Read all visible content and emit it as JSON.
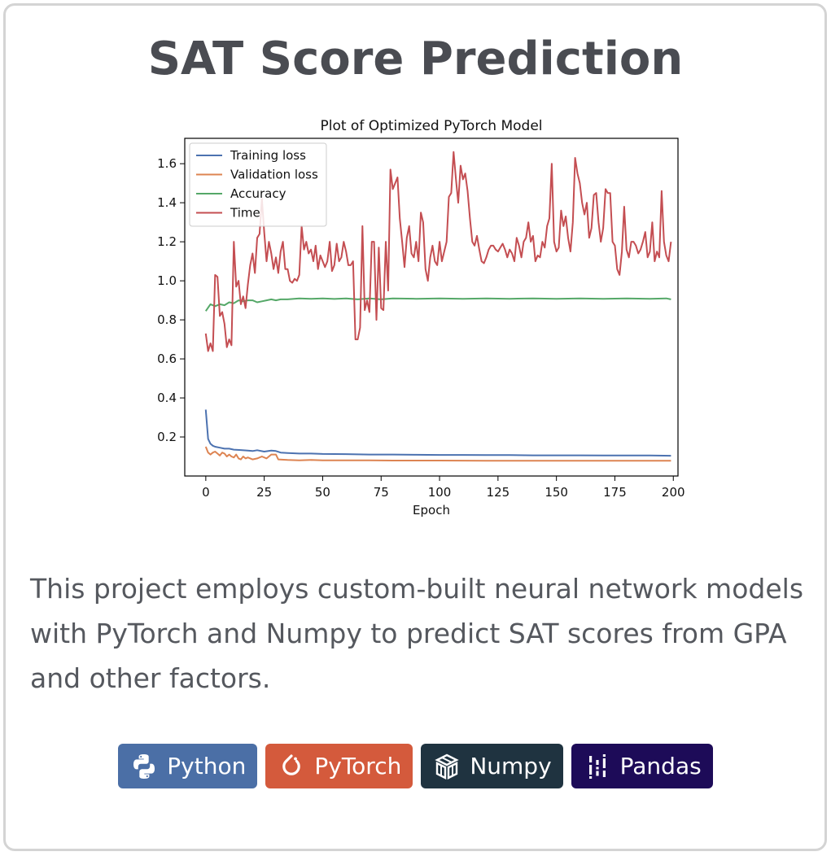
{
  "card": {
    "title": "SAT Score Prediction",
    "description": "This project employs custom-built neural network models with PyTorch and Numpy to predict SAT scores from GPA and other factors."
  },
  "badges": [
    {
      "label": "Python",
      "icon": "python-icon",
      "color": "#4b6fa6"
    },
    {
      "label": "PyTorch",
      "icon": "pytorch-icon",
      "color": "#d45a3c"
    },
    {
      "label": "Numpy",
      "icon": "numpy-icon",
      "color": "#1f3340"
    },
    {
      "label": "Pandas",
      "icon": "pandas-icon",
      "color": "#1d0b58"
    }
  ],
  "chart_data": {
    "type": "line",
    "title": "Plot of Optimized PyTorch Model",
    "xlabel": "Epoch",
    "ylabel": "",
    "xlim": [
      -9,
      202
    ],
    "ylim": [
      0.0,
      1.73
    ],
    "xticks": [
      0,
      25,
      50,
      75,
      100,
      125,
      150,
      175,
      200
    ],
    "yticks": [
      0.2,
      0.4,
      0.6,
      0.8,
      1.0,
      1.2,
      1.4,
      1.6
    ],
    "grid": false,
    "legend_position": "top-left",
    "series": [
      {
        "name": "Training loss",
        "color": "#4c72b0",
        "points": [
          [
            0,
            0.34
          ],
          [
            1,
            0.19
          ],
          [
            2,
            0.165
          ],
          [
            3,
            0.155
          ],
          [
            4,
            0.15
          ],
          [
            6,
            0.145
          ],
          [
            8,
            0.14
          ],
          [
            10,
            0.14
          ],
          [
            12,
            0.135
          ],
          [
            15,
            0.133
          ],
          [
            18,
            0.13
          ],
          [
            20,
            0.128
          ],
          [
            22,
            0.132
          ],
          [
            25,
            0.125
          ],
          [
            28,
            0.13
          ],
          [
            30,
            0.128
          ],
          [
            32,
            0.12
          ],
          [
            35,
            0.118
          ],
          [
            40,
            0.115
          ],
          [
            45,
            0.115
          ],
          [
            50,
            0.113
          ],
          [
            60,
            0.112
          ],
          [
            70,
            0.11
          ],
          [
            80,
            0.11
          ],
          [
            90,
            0.109
          ],
          [
            100,
            0.108
          ],
          [
            110,
            0.108
          ],
          [
            120,
            0.107
          ],
          [
            130,
            0.107
          ],
          [
            140,
            0.106
          ],
          [
            150,
            0.106
          ],
          [
            160,
            0.106
          ],
          [
            170,
            0.105
          ],
          [
            180,
            0.105
          ],
          [
            190,
            0.105
          ],
          [
            199,
            0.104
          ]
        ]
      },
      {
        "name": "Validation loss",
        "color": "#dd8452",
        "points": [
          [
            0,
            0.15
          ],
          [
            1,
            0.12
          ],
          [
            2,
            0.11
          ],
          [
            3,
            0.12
          ],
          [
            4,
            0.125
          ],
          [
            5,
            0.115
          ],
          [
            6,
            0.105
          ],
          [
            7,
            0.12
          ],
          [
            8,
            0.115
          ],
          [
            9,
            0.1
          ],
          [
            10,
            0.11
          ],
          [
            11,
            0.1
          ],
          [
            12,
            0.095
          ],
          [
            13,
            0.11
          ],
          [
            14,
            0.09
          ],
          [
            15,
            0.085
          ],
          [
            16,
            0.1
          ],
          [
            17,
            0.09
          ],
          [
            18,
            0.095
          ],
          [
            20,
            0.085
          ],
          [
            22,
            0.09
          ],
          [
            24,
            0.1
          ],
          [
            26,
            0.09
          ],
          [
            28,
            0.11
          ],
          [
            30,
            0.11
          ],
          [
            31,
            0.085
          ],
          [
            35,
            0.082
          ],
          [
            40,
            0.08
          ],
          [
            45,
            0.082
          ],
          [
            50,
            0.08
          ],
          [
            60,
            0.08
          ],
          [
            70,
            0.08
          ],
          [
            80,
            0.079
          ],
          [
            90,
            0.079
          ],
          [
            100,
            0.079
          ],
          [
            120,
            0.078
          ],
          [
            140,
            0.078
          ],
          [
            160,
            0.078
          ],
          [
            180,
            0.078
          ],
          [
            199,
            0.078
          ]
        ]
      },
      {
        "name": "Accuracy",
        "color": "#55a868",
        "points": [
          [
            0,
            0.845
          ],
          [
            2,
            0.88
          ],
          [
            4,
            0.87
          ],
          [
            6,
            0.88
          ],
          [
            8,
            0.875
          ],
          [
            10,
            0.89
          ],
          [
            12,
            0.885
          ],
          [
            14,
            0.9
          ],
          [
            16,
            0.895
          ],
          [
            18,
            0.9
          ],
          [
            20,
            0.9
          ],
          [
            22,
            0.89
          ],
          [
            24,
            0.895
          ],
          [
            26,
            0.9
          ],
          [
            28,
            0.905
          ],
          [
            30,
            0.9
          ],
          [
            32,
            0.905
          ],
          [
            35,
            0.905
          ],
          [
            40,
            0.91
          ],
          [
            45,
            0.908
          ],
          [
            50,
            0.91
          ],
          [
            55,
            0.907
          ],
          [
            60,
            0.91
          ],
          [
            65,
            0.905
          ],
          [
            70,
            0.91
          ],
          [
            75,
            0.905
          ],
          [
            80,
            0.91
          ],
          [
            90,
            0.908
          ],
          [
            100,
            0.91
          ],
          [
            110,
            0.908
          ],
          [
            120,
            0.91
          ],
          [
            130,
            0.908
          ],
          [
            140,
            0.91
          ],
          [
            150,
            0.908
          ],
          [
            160,
            0.91
          ],
          [
            170,
            0.908
          ],
          [
            180,
            0.91
          ],
          [
            190,
            0.908
          ],
          [
            197,
            0.91
          ],
          [
            199,
            0.905
          ]
        ]
      },
      {
        "name": "Time",
        "color": "#c44e52",
        "points": [
          [
            0,
            0.73
          ],
          [
            1,
            0.64
          ],
          [
            2,
            0.68
          ],
          [
            3,
            0.64
          ],
          [
            4,
            1.03
          ],
          [
            5,
            1.02
          ],
          [
            6,
            0.82
          ],
          [
            7,
            0.84
          ],
          [
            8,
            0.78
          ],
          [
            9,
            0.66
          ],
          [
            10,
            0.7
          ],
          [
            11,
            0.67
          ],
          [
            12,
            1.2
          ],
          [
            13,
            0.97
          ],
          [
            14,
            1.0
          ],
          [
            15,
            0.88
          ],
          [
            16,
            0.92
          ],
          [
            17,
            0.86
          ],
          [
            18,
            0.98
          ],
          [
            19,
            1.08
          ],
          [
            20,
            1.14
          ],
          [
            21,
            1.04
          ],
          [
            22,
            1.22
          ],
          [
            23,
            1.24
          ],
          [
            24,
            1.42
          ],
          [
            25,
            1.25
          ],
          [
            26,
            1.1
          ],
          [
            27,
            1.2
          ],
          [
            28,
            1.14
          ],
          [
            29,
            1.06
          ],
          [
            30,
            1.12
          ],
          [
            31,
            1.04
          ],
          [
            32,
            1.15
          ],
          [
            33,
            1.2
          ],
          [
            34,
            1.06
          ],
          [
            35,
            1.06
          ],
          [
            36,
            1.0
          ],
          [
            37,
            0.99
          ],
          [
            38,
            1.01
          ],
          [
            39,
            1.0
          ],
          [
            40,
            1.03
          ],
          [
            41,
            1.28
          ],
          [
            42,
            1.16
          ],
          [
            43,
            1.2
          ],
          [
            44,
            1.14
          ],
          [
            45,
            1.16
          ],
          [
            46,
            1.1
          ],
          [
            47,
            1.18
          ],
          [
            48,
            1.06
          ],
          [
            49,
            1.13
          ],
          [
            50,
            1.1
          ],
          [
            51,
            1.07
          ],
          [
            52,
            1.1
          ],
          [
            53,
            1.2
          ],
          [
            54,
            1.05
          ],
          [
            55,
            1.08
          ],
          [
            56,
            1.19
          ],
          [
            57,
            1.1
          ],
          [
            58,
            1.12
          ],
          [
            59,
            1.2
          ],
          [
            60,
            1.15
          ],
          [
            61,
            1.08
          ],
          [
            62,
            1.08
          ],
          [
            63,
            1.1
          ],
          [
            64,
            0.7
          ],
          [
            65,
            0.7
          ],
          [
            66,
            0.76
          ],
          [
            67,
            1.28
          ],
          [
            68,
            0.85
          ],
          [
            69,
            0.9
          ],
          [
            70,
            0.84
          ],
          [
            71,
            1.2
          ],
          [
            72,
            1.2
          ],
          [
            73,
            0.8
          ],
          [
            74,
            1.17
          ],
          [
            75,
            0.86
          ],
          [
            76,
            0.85
          ],
          [
            77,
            1.2
          ],
          [
            78,
            0.95
          ],
          [
            79,
            1.57
          ],
          [
            80,
            1.47
          ],
          [
            81,
            1.5
          ],
          [
            82,
            1.53
          ],
          [
            83,
            1.32
          ],
          [
            84,
            1.2
          ],
          [
            85,
            1.07
          ],
          [
            86,
            1.22
          ],
          [
            87,
            1.28
          ],
          [
            88,
            1.14
          ],
          [
            89,
            1.12
          ],
          [
            90,
            1.2
          ],
          [
            91,
            1.1
          ],
          [
            92,
            1.35
          ],
          [
            93,
            1.3
          ],
          [
            94,
            1.06
          ],
          [
            95,
            1.0
          ],
          [
            96,
            1.12
          ],
          [
            97,
            1.18
          ],
          [
            98,
            1.1
          ],
          [
            99,
            1.08
          ],
          [
            100,
            1.2
          ],
          [
            101,
            1.1
          ],
          [
            102,
            1.15
          ],
          [
            103,
            1.2
          ],
          [
            104,
            1.43
          ],
          [
            105,
            1.45
          ],
          [
            106,
            1.66
          ],
          [
            107,
            1.52
          ],
          [
            108,
            1.4
          ],
          [
            109,
            1.59
          ],
          [
            110,
            1.52
          ],
          [
            111,
            1.55
          ],
          [
            112,
            1.46
          ],
          [
            113,
            1.32
          ],
          [
            114,
            1.2
          ],
          [
            115,
            1.18
          ],
          [
            116,
            1.23
          ],
          [
            117,
            1.16
          ],
          [
            118,
            1.1
          ],
          [
            119,
            1.09
          ],
          [
            120,
            1.12
          ],
          [
            121,
            1.16
          ],
          [
            122,
            1.18
          ],
          [
            123,
            1.18
          ],
          [
            124,
            1.16
          ],
          [
            125,
            1.15
          ],
          [
            126,
            1.17
          ],
          [
            127,
            1.19
          ],
          [
            128,
            1.16
          ],
          [
            129,
            1.12
          ],
          [
            130,
            1.16
          ],
          [
            131,
            1.14
          ],
          [
            132,
            1.1
          ],
          [
            133,
            1.22
          ],
          [
            134,
            1.18
          ],
          [
            135,
            1.12
          ],
          [
            136,
            1.2
          ],
          [
            137,
            1.22
          ],
          [
            138,
            1.3
          ],
          [
            139,
            1.2
          ],
          [
            140,
            1.23
          ],
          [
            141,
            1.1
          ],
          [
            142,
            1.13
          ],
          [
            143,
            1.12
          ],
          [
            144,
            1.2
          ],
          [
            145,
            1.17
          ],
          [
            146,
            1.28
          ],
          [
            147,
            1.32
          ],
          [
            148,
            1.6
          ],
          [
            149,
            1.2
          ],
          [
            150,
            1.15
          ],
          [
            151,
            1.17
          ],
          [
            152,
            1.36
          ],
          [
            153,
            1.28
          ],
          [
            154,
            1.33
          ],
          [
            155,
            1.22
          ],
          [
            156,
            1.15
          ],
          [
            157,
            1.3
          ],
          [
            158,
            1.63
          ],
          [
            159,
            1.55
          ],
          [
            160,
            1.5
          ],
          [
            161,
            1.4
          ],
          [
            162,
            1.34
          ],
          [
            163,
            1.4
          ],
          [
            164,
            1.22
          ],
          [
            165,
            1.27
          ],
          [
            166,
            1.44
          ],
          [
            167,
            1.45
          ],
          [
            168,
            1.3
          ],
          [
            169,
            1.2
          ],
          [
            170,
            1.27
          ],
          [
            171,
            1.47
          ],
          [
            172,
            1.45
          ],
          [
            173,
            1.45
          ],
          [
            174,
            1.2
          ],
          [
            175,
            1.18
          ],
          [
            176,
            1.06
          ],
          [
            177,
            1.03
          ],
          [
            178,
            1.15
          ],
          [
            179,
            1.38
          ],
          [
            180,
            1.16
          ],
          [
            181,
            1.12
          ],
          [
            182,
            1.2
          ],
          [
            183,
            1.2
          ],
          [
            184,
            1.18
          ],
          [
            185,
            1.14
          ],
          [
            186,
            1.16
          ],
          [
            187,
            1.2
          ],
          [
            188,
            1.25
          ],
          [
            189,
            1.12
          ],
          [
            190,
            1.15
          ],
          [
            191,
            1.3
          ],
          [
            192,
            1.1
          ],
          [
            193,
            1.15
          ],
          [
            194,
            1.12
          ],
          [
            195,
            1.46
          ],
          [
            196,
            1.2
          ],
          [
            197,
            1.13
          ],
          [
            198,
            1.1
          ],
          [
            199,
            1.2
          ]
        ]
      }
    ]
  }
}
